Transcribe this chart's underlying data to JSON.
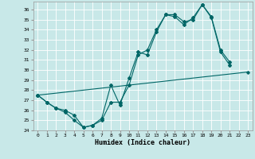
{
  "bg_color": "#c8e8e8",
  "line_color": "#006666",
  "xlabel": "Humidex (Indice chaleur)",
  "ylim": [
    24,
    36.8
  ],
  "xlim": [
    -0.5,
    23.5
  ],
  "yticks": [
    24,
    25,
    26,
    27,
    28,
    29,
    30,
    31,
    32,
    33,
    34,
    35,
    36
  ],
  "xticks": [
    0,
    1,
    2,
    3,
    4,
    5,
    6,
    7,
    8,
    9,
    10,
    11,
    12,
    13,
    14,
    15,
    16,
    17,
    18,
    19,
    20,
    21,
    22,
    23
  ],
  "series": [
    {
      "x": [
        0,
        1,
        2,
        3,
        4,
        5,
        6,
        7,
        8,
        9,
        10,
        11,
        12,
        13,
        14,
        15,
        16,
        17,
        18,
        19,
        20,
        21
      ],
      "y": [
        27.5,
        26.8,
        26.2,
        25.8,
        25.0,
        24.3,
        24.5,
        25.2,
        28.5,
        26.5,
        29.2,
        31.8,
        31.5,
        33.8,
        35.5,
        35.5,
        34.8,
        35.0,
        36.5,
        35.3,
        32.0,
        30.8
      ]
    },
    {
      "x": [
        0,
        1,
        2,
        3,
        4,
        5,
        6,
        7,
        8,
        9,
        10,
        11,
        12,
        13,
        14,
        15,
        16,
        17,
        18,
        19,
        20,
        21
      ],
      "y": [
        27.5,
        26.8,
        26.2,
        26.0,
        25.5,
        24.3,
        24.5,
        25.0,
        26.8,
        26.8,
        28.5,
        31.5,
        32.0,
        34.0,
        35.5,
        35.3,
        34.5,
        35.2,
        36.5,
        35.2,
        31.8,
        30.5
      ]
    },
    {
      "x": [
        0,
        23
      ],
      "y": [
        27.5,
        29.8
      ]
    }
  ]
}
